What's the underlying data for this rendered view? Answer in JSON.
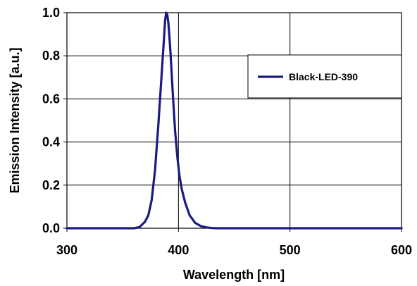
{
  "chart_data": {
    "type": "line",
    "xlabel": "Wavelength [nm]",
    "ylabel": "Emission Intensity [a.u.]",
    "xlim": [
      300,
      600
    ],
    "ylim": [
      0,
      1.0
    ],
    "x_ticks": [
      "300",
      "400",
      "500",
      "600"
    ],
    "y_ticks": [
      "0.0",
      "0.2",
      "0.4",
      "0.6",
      "0.8",
      "1.0"
    ],
    "grid": true,
    "legend_position": "top-right",
    "series": [
      {
        "name": "Black-LED-390",
        "color": "#1a1a80",
        "x": [
          300,
          360,
          365,
          370,
          373,
          376,
          379,
          382,
          385,
          387,
          388,
          389,
          390,
          391,
          392,
          393,
          395,
          397,
          399,
          401,
          403,
          406,
          410,
          415,
          420,
          425,
          430,
          435,
          600
        ],
        "y": [
          0.0,
          0.0,
          0.005,
          0.03,
          0.06,
          0.13,
          0.27,
          0.48,
          0.72,
          0.88,
          0.96,
          1.0,
          0.99,
          0.95,
          0.88,
          0.8,
          0.62,
          0.45,
          0.33,
          0.24,
          0.18,
          0.12,
          0.06,
          0.025,
          0.01,
          0.004,
          0.001,
          0.0,
          0.0
        ]
      }
    ]
  }
}
